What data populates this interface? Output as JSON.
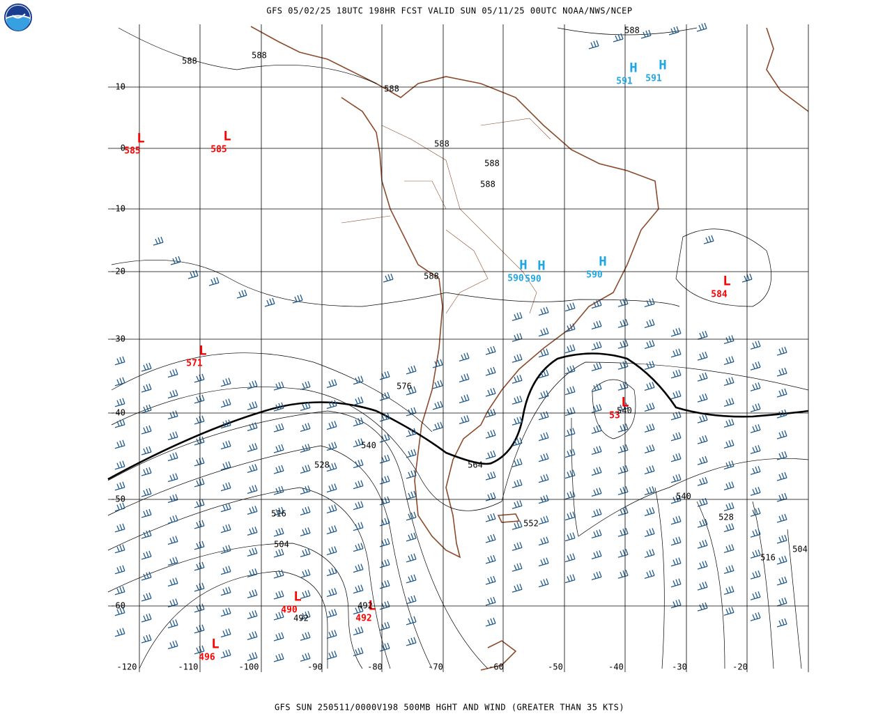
{
  "header": {
    "title": "GFS 05/02/25 18UTC 198HR FCST VALID SUN 05/11/25 00UTC NOAA/NWS/NCEP"
  },
  "footer": {
    "text": "GFS SUN 250511/0000V198 500MB HGHT AND WIND (GREATER THAN 35 KTS)"
  },
  "latitude_labels": [
    10,
    0,
    -10,
    -20,
    -30,
    -40,
    -50,
    -60
  ],
  "longitude_labels": [
    -120,
    -110,
    -100,
    -90,
    -80,
    -70,
    -60,
    -50,
    -40,
    -30,
    -20
  ],
  "centers": [
    {
      "symbol": "L",
      "value": "585"
    },
    {
      "symbol": "L",
      "value": "585"
    },
    {
      "symbol": "H",
      "value": "591"
    },
    {
      "symbol": "H",
      "value": "591"
    },
    {
      "symbol": "H",
      "value": "590"
    },
    {
      "symbol": "H",
      "value": "590"
    },
    {
      "symbol": "H",
      "value": "590"
    },
    {
      "symbol": "L",
      "value": "584"
    },
    {
      "symbol": "L",
      "value": "571"
    },
    {
      "symbol": "L",
      "value": "53"
    },
    {
      "symbol": "L",
      "value": "490"
    },
    {
      "symbol": "L",
      "value": "492"
    },
    {
      "symbol": "L",
      "value": "496"
    }
  ],
  "contour_labels": [
    "588",
    "588",
    "588",
    "588",
    "588",
    "588",
    "588",
    "588",
    "576",
    "540",
    "528",
    "564",
    "540",
    "540",
    "516",
    "552",
    "528",
    "504",
    "516",
    "504",
    "492",
    "492"
  ]
}
